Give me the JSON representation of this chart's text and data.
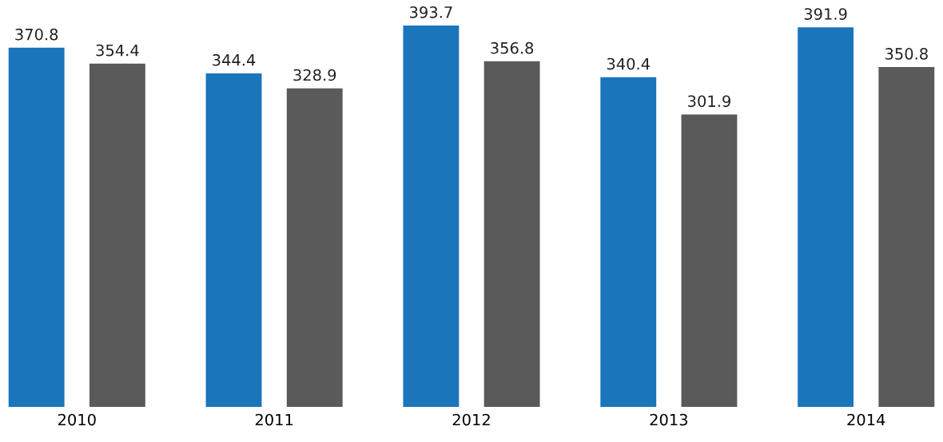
{
  "chart_data": {
    "type": "bar",
    "categories": [
      "2010",
      "2011",
      "2012",
      "2013",
      "2014"
    ],
    "series": [
      {
        "color": "#1a75bb",
        "values": [
          370.8,
          344.4,
          393.7,
          340.4,
          391.9
        ]
      },
      {
        "color": "#5a5a5a",
        "values": [
          354.4,
          328.9,
          356.8,
          301.9,
          350.8
        ]
      }
    ],
    "data_labels": true
  }
}
